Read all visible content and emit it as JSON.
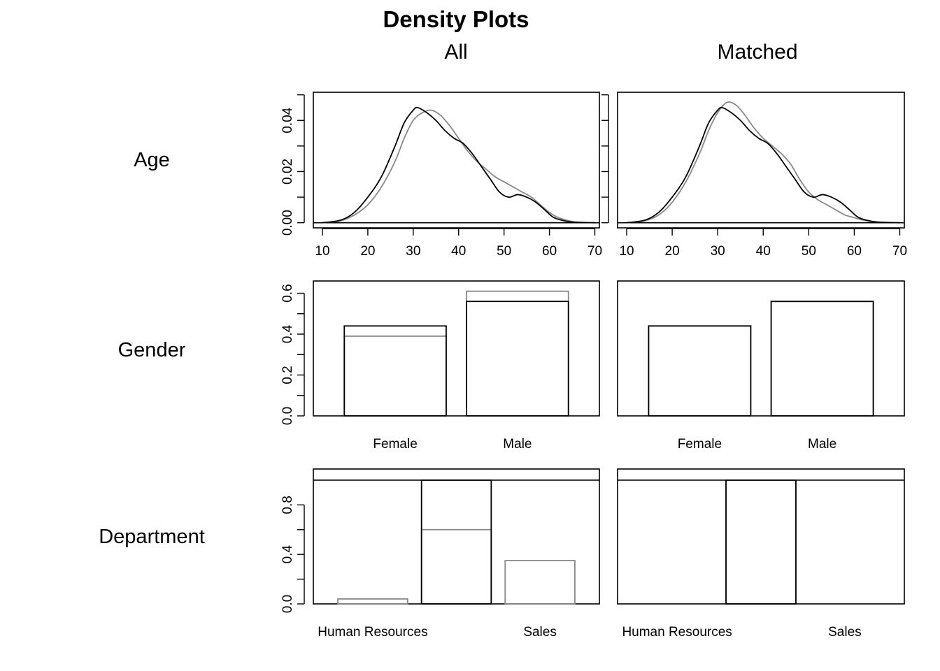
{
  "title": "Density Plots",
  "columns": [
    "All",
    "Matched"
  ],
  "rows": [
    "Age",
    "Gender",
    "Department"
  ],
  "chart_data": [
    {
      "type": "line",
      "variable": "Age",
      "panel": "All",
      "xlim": [
        8,
        71
      ],
      "ylim": [
        -0.002,
        0.051
      ],
      "x_ticks": [
        10,
        20,
        30,
        40,
        50,
        60,
        70
      ],
      "y_ticks": [
        0,
        0.01,
        0.02,
        0.03,
        0.04,
        0.05
      ],
      "y_tick_labels": [
        "0.00",
        "0.02",
        "0.04"
      ],
      "y_tick_label_values": [
        0,
        0.02,
        0.04
      ],
      "zero_line": true,
      "series": [
        {
          "color": "#000000",
          "x": [
            10,
            14,
            17,
            20,
            23,
            26,
            28,
            30,
            31,
            33,
            35,
            37,
            39,
            41,
            43,
            45,
            47,
            49,
            51,
            53,
            55,
            57,
            59,
            61,
            64,
            67,
            70
          ],
          "y": [
            0,
            0.001,
            0.004,
            0.01,
            0.018,
            0.03,
            0.039,
            0.044,
            0.045,
            0.043,
            0.04,
            0.036,
            0.033,
            0.031,
            0.027,
            0.022,
            0.017,
            0.012,
            0.01,
            0.011,
            0.01,
            0.008,
            0.005,
            0.002,
            0.0005,
            0.0001,
            0
          ]
        },
        {
          "color": "#888888",
          "x": [
            10,
            14,
            17,
            20,
            23,
            26,
            28,
            30,
            32,
            34,
            36,
            38,
            40,
            42,
            44,
            46,
            48,
            50,
            52,
            54,
            56,
            58,
            60,
            62,
            65,
            68,
            70
          ],
          "y": [
            0,
            0.0008,
            0.003,
            0.007,
            0.014,
            0.024,
            0.033,
            0.04,
            0.043,
            0.044,
            0.042,
            0.038,
            0.033,
            0.028,
            0.024,
            0.021,
            0.018,
            0.016,
            0.014,
            0.012,
            0.01,
            0.007,
            0.004,
            0.002,
            0.0005,
            0.0001,
            0
          ]
        }
      ]
    },
    {
      "type": "line",
      "variable": "Age",
      "panel": "Matched",
      "xlim": [
        8,
        71
      ],
      "ylim": [
        -0.002,
        0.051
      ],
      "x_ticks": [
        10,
        20,
        30,
        40,
        50,
        60,
        70
      ],
      "y_ticks": [
        0,
        0.01,
        0.02,
        0.03,
        0.04,
        0.05
      ],
      "zero_line": true,
      "series": [
        {
          "color": "#000000",
          "x": [
            10,
            14,
            17,
            20,
            23,
            26,
            28,
            30,
            31,
            33,
            35,
            37,
            39,
            41,
            43,
            45,
            47,
            49,
            51,
            53,
            55,
            57,
            59,
            61,
            64,
            67,
            70
          ],
          "y": [
            0,
            0.001,
            0.004,
            0.01,
            0.018,
            0.03,
            0.039,
            0.044,
            0.045,
            0.043,
            0.04,
            0.036,
            0.033,
            0.031,
            0.027,
            0.022,
            0.017,
            0.012,
            0.01,
            0.011,
            0.01,
            0.008,
            0.005,
            0.002,
            0.0005,
            0.0001,
            0
          ]
        },
        {
          "color": "#888888",
          "x": [
            10,
            14,
            17,
            20,
            23,
            26,
            28,
            30,
            32,
            34,
            36,
            38,
            40,
            42,
            44,
            46,
            48,
            50,
            52,
            54,
            56,
            58,
            60,
            62,
            65,
            68,
            70
          ],
          "y": [
            0,
            0.0008,
            0.003,
            0.008,
            0.016,
            0.027,
            0.036,
            0.043,
            0.047,
            0.046,
            0.042,
            0.037,
            0.033,
            0.03,
            0.027,
            0.023,
            0.017,
            0.012,
            0.009,
            0.007,
            0.005,
            0.003,
            0.002,
            0.001,
            0.0003,
            0.0001,
            0
          ]
        }
      ]
    },
    {
      "type": "bar",
      "variable": "Gender",
      "panel": "All",
      "categories": [
        "Female",
        "Male"
      ],
      "ylim": [
        0,
        0.66
      ],
      "y_ticks": [
        0,
        0.1,
        0.2,
        0.3,
        0.4,
        0.5,
        0.6
      ],
      "y_tick_labels": [
        "0.0",
        "0.2",
        "0.4",
        "0.6"
      ],
      "y_tick_label_values": [
        0,
        0.2,
        0.4,
        0.6
      ],
      "series": [
        {
          "color": "#000000",
          "values": [
            0.44,
            0.56
          ]
        },
        {
          "color": "#888888",
          "values": [
            0.39,
            0.61
          ]
        }
      ]
    },
    {
      "type": "bar",
      "variable": "Gender",
      "panel": "Matched",
      "categories": [
        "Female",
        "Male"
      ],
      "ylim": [
        0,
        0.66
      ],
      "series": [
        {
          "color": "#000000",
          "values": [
            0.44,
            0.56
          ]
        },
        {
          "color": "#888888",
          "values": [
            0.44,
            0.56
          ]
        }
      ]
    },
    {
      "type": "bar",
      "variable": "Department",
      "panel": "All",
      "categories": [
        "Human Resources",
        "",
        "Sales"
      ],
      "ylim": [
        0,
        1.09
      ],
      "y_ticks": [
        0,
        0.2,
        0.4,
        0.6,
        0.8
      ],
      "y_tick_labels": [
        "0.0",
        "0.4",
        "0.8"
      ],
      "y_tick_label_values": [
        0,
        0.4,
        0.8
      ],
      "top_line": 1.0,
      "series": [
        {
          "color": "#000000",
          "values": [
            0,
            1.0,
            0
          ]
        },
        {
          "color": "#888888",
          "values": [
            0.04,
            0.6,
            0.35
          ]
        }
      ]
    },
    {
      "type": "bar",
      "variable": "Department",
      "panel": "Matched",
      "categories": [
        "Human Resources",
        "",
        "Sales"
      ],
      "ylim": [
        0,
        1.09
      ],
      "top_line": 1.0,
      "series": [
        {
          "color": "#000000",
          "values": [
            0,
            1.0,
            0
          ]
        },
        {
          "color": "#888888",
          "values": [
            0,
            1.0,
            0
          ]
        }
      ]
    }
  ]
}
